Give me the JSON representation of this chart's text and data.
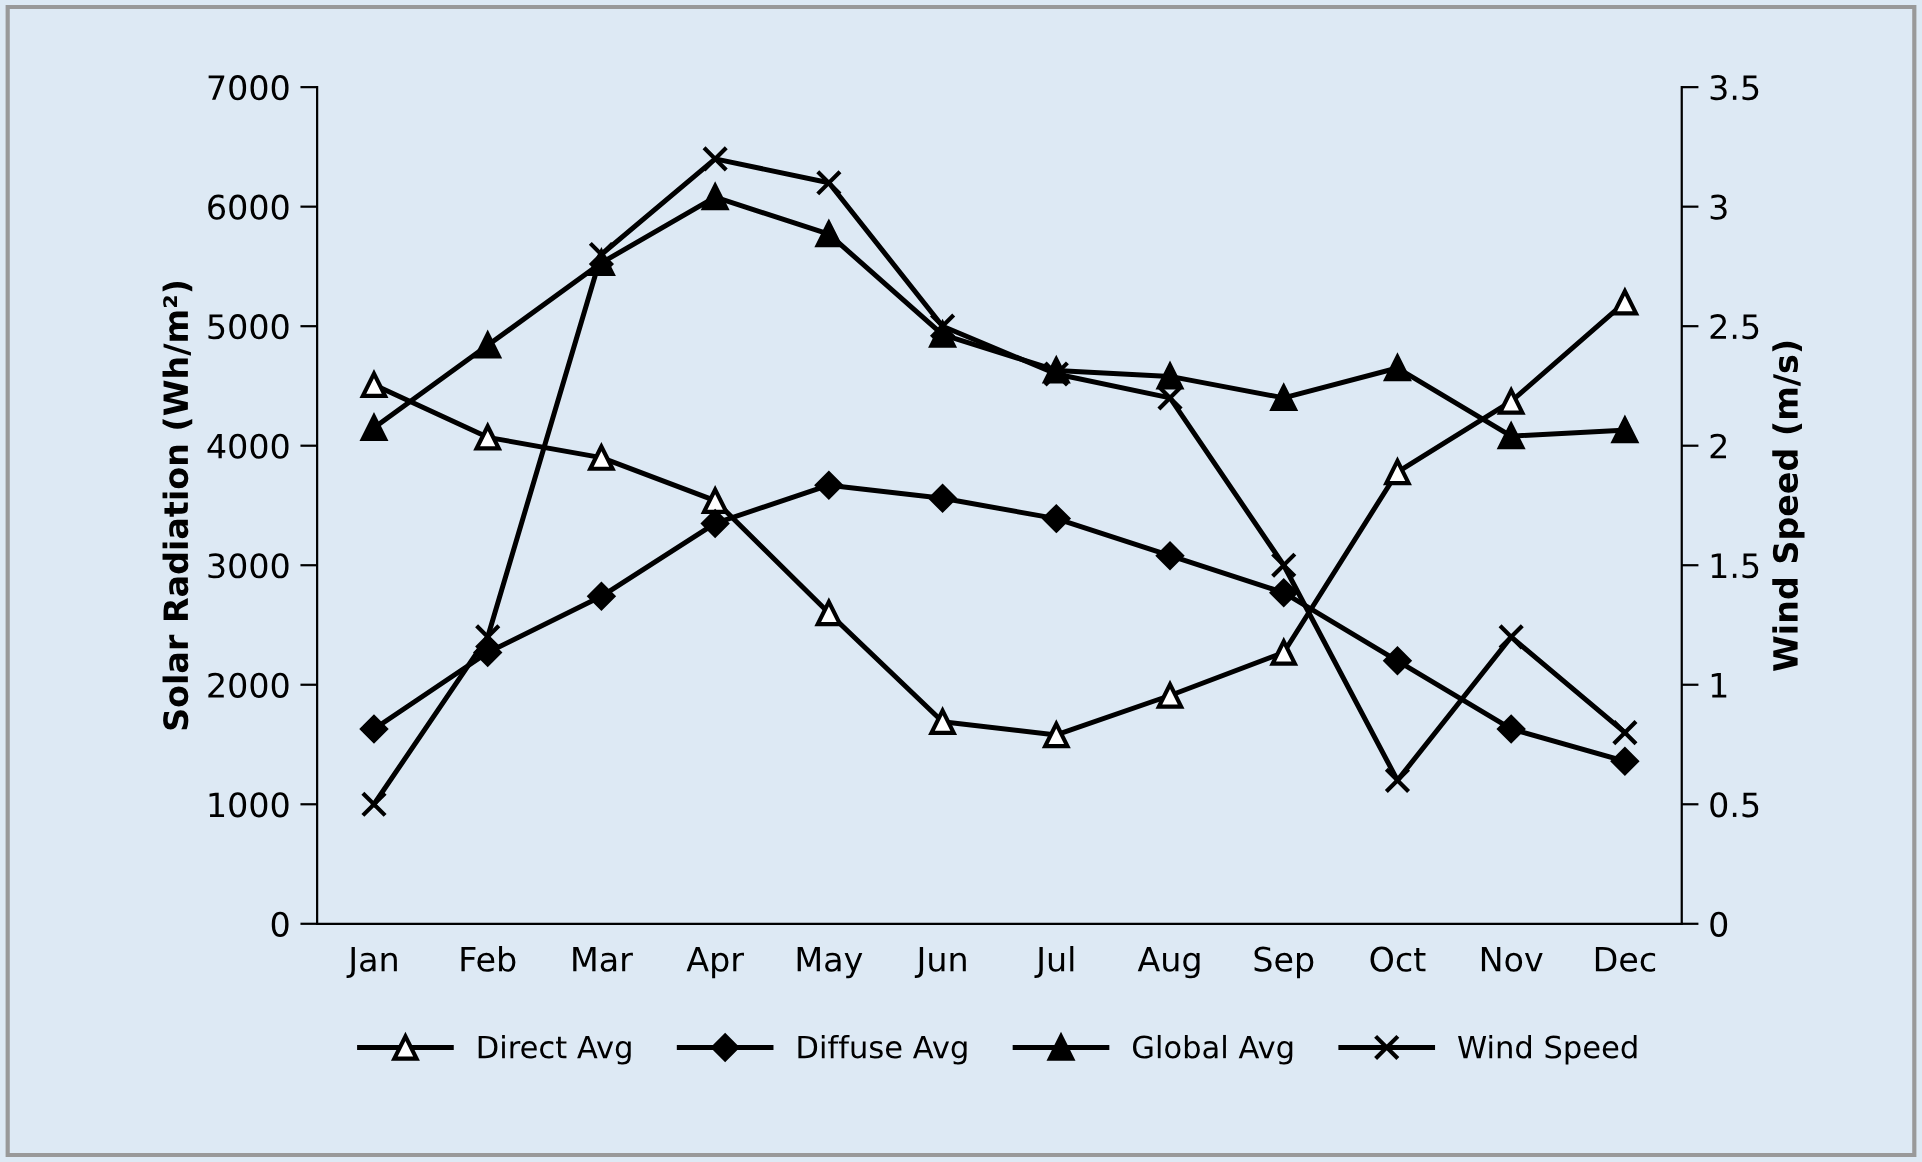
{
  "chart_data": {
    "type": "line",
    "categories": [
      "Jan",
      "Feb",
      "Mar",
      "Apr",
      "May",
      "Jun",
      "Jul",
      "Aug",
      "Sep",
      "Oct",
      "Nov",
      "Dec"
    ],
    "ylabel": "Solar Radiation (Wh/m²)",
    "y2label": "Wind Speed (m/s)",
    "ylim": [
      0,
      7000
    ],
    "yticks": [
      0,
      1000,
      2000,
      3000,
      4000,
      5000,
      6000,
      7000
    ],
    "y2lim": [
      0,
      3.5
    ],
    "y2ticks": [
      0,
      0.5,
      1,
      1.5,
      2,
      2.5,
      3,
      3.5
    ],
    "grid": false,
    "legend": "bottom",
    "line_style": "solid",
    "series": [
      {
        "name": "Direct Avg",
        "color": "#000000",
        "marker": "triangle",
        "values": [
          4510,
          4070,
          3900,
          3540,
          2600,
          1690,
          1580,
          1910,
          2270,
          3780,
          4370,
          5200
        ]
      },
      {
        "name": "Diffuse Avg",
        "color": "#000000",
        "marker": "diamond",
        "values": [
          1630,
          2270,
          2740,
          3350,
          3670,
          3560,
          3390,
          3080,
          2770,
          2200,
          1630,
          1360
        ]
      },
      {
        "name": "Global Avg",
        "color": "#000000",
        "marker": "triangle",
        "values": [
          4150,
          4840,
          5530,
          6080,
          5770,
          4930,
          4630,
          4580,
          4400,
          4650,
          4080,
          4130
        ]
      },
      {
        "name": "Wind Speed",
        "color": "#000000",
        "marker": "cross",
        "axis": "y2",
        "values": [
          0.5,
          1.2,
          2.8,
          3.2,
          3.1,
          2.5,
          2.3,
          2.2,
          1.5,
          0.6,
          1.2,
          0.8
        ]
      }
    ]
  }
}
